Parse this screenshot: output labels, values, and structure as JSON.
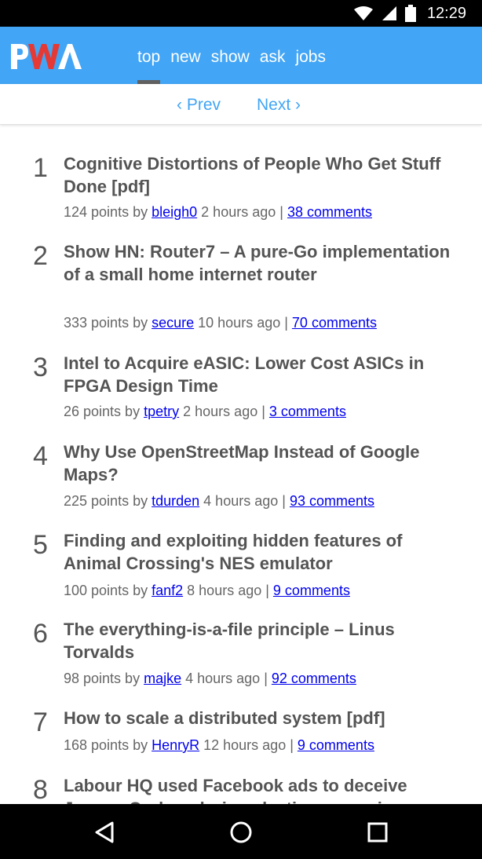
{
  "status_bar": {
    "time": "12:29",
    "icons": [
      "wifi-icon",
      "signal-icon",
      "battery-icon"
    ]
  },
  "header": {
    "logo_text": "PWA",
    "nav": [
      {
        "label": "top",
        "active": true
      },
      {
        "label": "new",
        "active": false
      },
      {
        "label": "show",
        "active": false
      },
      {
        "label": "ask",
        "active": false
      },
      {
        "label": "jobs",
        "active": false
      }
    ],
    "accent_color": "#42a5f5"
  },
  "pager": {
    "prev": "‹ Prev",
    "next": "Next ›"
  },
  "stories": [
    {
      "rank": "1",
      "title": "Cognitive Distortions of People Who Get Stuff Done [pdf]",
      "points": "124 points by",
      "user": "bleigh0",
      "age": "2 hours ago |",
      "comments": "38 comments"
    },
    {
      "rank": "2",
      "title": "Show HN: Router7 – A pure-Go implementation of a small home internet router",
      "points": "333 points by",
      "user": "secure",
      "age": "10 hours ago |",
      "comments": "70 comments"
    },
    {
      "rank": "3",
      "title": "Intel to Acquire eASIC: Lower Cost ASICs in FPGA Design Time",
      "points": "26 points by",
      "user": "tpetry",
      "age": "2 hours ago |",
      "comments": "3 comments"
    },
    {
      "rank": "4",
      "title": "Why Use OpenStreetMap Instead of Google Maps?",
      "points": "225 points by",
      "user": "tdurden",
      "age": "4 hours ago |",
      "comments": "93 comments"
    },
    {
      "rank": "5",
      "title": "Finding and exploiting hidden features of Animal Crossing's NES emulator",
      "points": "100 points by",
      "user": "fanf2",
      "age": "8 hours ago |",
      "comments": "9 comments"
    },
    {
      "rank": "6",
      "title": "The everything-is-a-file principle – Linus Torvalds",
      "points": "98 points by",
      "user": "majke",
      "age": "4 hours ago |",
      "comments": "92 comments"
    },
    {
      "rank": "7",
      "title": "How to scale a distributed system [pdf]",
      "points": "168 points by",
      "user": "HenryR",
      "age": "12 hours ago |",
      "comments": "9 comments"
    },
    {
      "rank": "8",
      "title": "Labour HQ used Facebook ads to deceive Jeremy Corbyn during election campaign",
      "points": "",
      "user": "",
      "age": "",
      "comments": ""
    }
  ],
  "nav_bar": {
    "buttons": [
      "back-icon",
      "home-icon",
      "recents-icon"
    ]
  }
}
